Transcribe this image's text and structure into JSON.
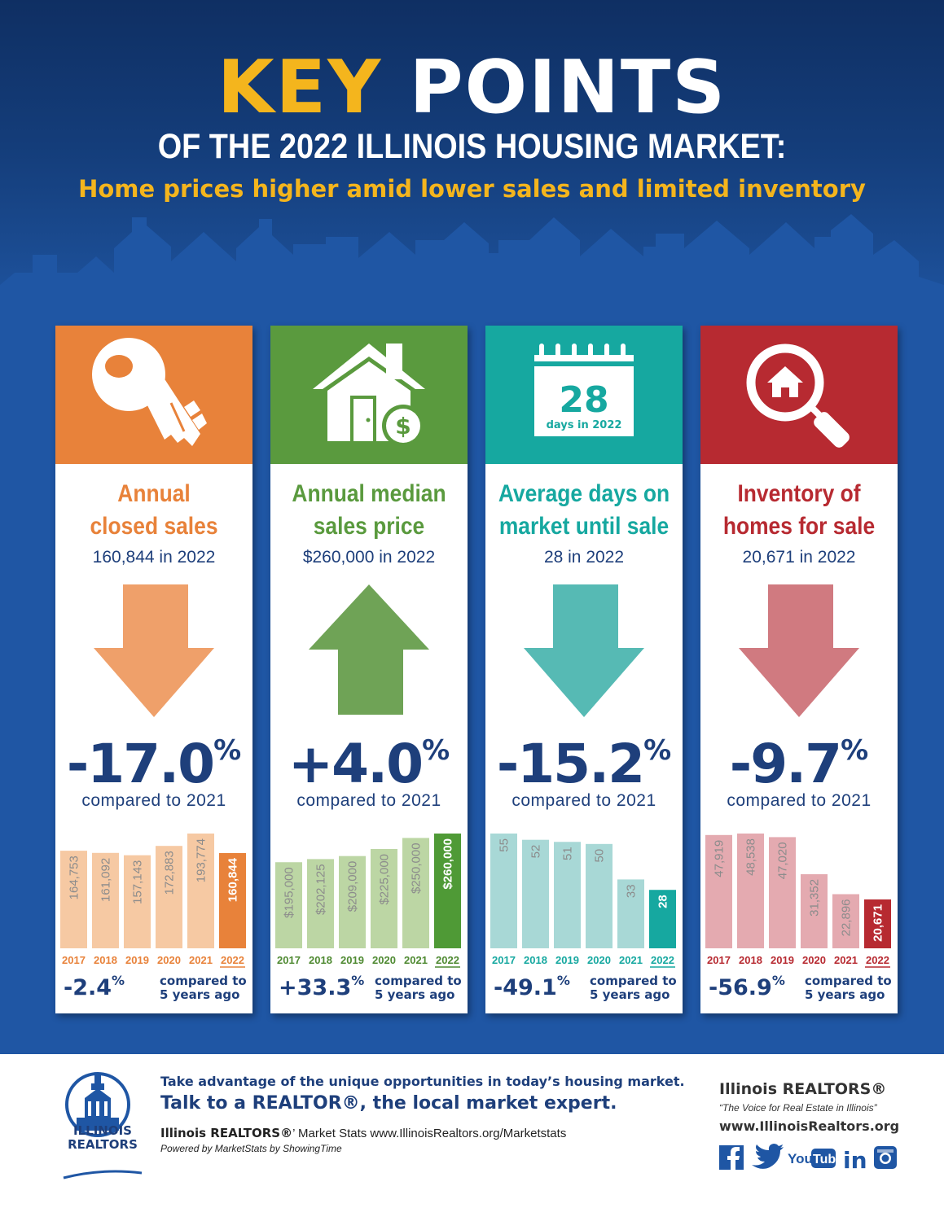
{
  "header": {
    "title_key": "KEY",
    "title_points": "POINTS",
    "subtitle": "OF THE 2022 ILLINOIS HOUSING MARKET:",
    "tagline": "Home prices higher amid lower sales and limited inventory"
  },
  "colors": {
    "orange": "#e8823a",
    "green": "#5a9a3e",
    "teal": "#16a8a0",
    "red": "#b72a31",
    "navy": "#1e3f7b",
    "yellow": "#f4b51d"
  },
  "cards": [
    {
      "icon": "key-icon",
      "title_l1": "Annual",
      "title_l2": "closed sales",
      "sub": "160,844 in 2022",
      "direction": "down",
      "change": "-17.0",
      "change_unit": "%",
      "compared": "compared to 2021",
      "five_yr": "-2.4",
      "five_yr_unit": "%",
      "five_yr_l1": "compared to",
      "five_yr_l2": "5 years ago"
    },
    {
      "icon": "house-dollar-icon",
      "title_l1": "Annual median",
      "title_l2": "sales price",
      "sub": "$260,000 in 2022",
      "direction": "up",
      "change": "+4.0",
      "change_unit": "%",
      "compared": "compared to 2021",
      "five_yr": "+33.3",
      "five_yr_unit": "%",
      "five_yr_l1": "compared to",
      "five_yr_l2": "5 years ago"
    },
    {
      "icon": "calendar-icon",
      "calendar_number": "28",
      "calendar_caption": "days in 2022",
      "title_l1": "Average days on",
      "title_l2": "market until sale",
      "sub": "28 in 2022",
      "direction": "down",
      "change": "-15.2",
      "change_unit": "%",
      "compared": "compared to 2021",
      "five_yr": "-49.1",
      "five_yr_unit": "%",
      "five_yr_l1": "compared to",
      "five_yr_l2": "5 years ago"
    },
    {
      "icon": "magnifier-house-icon",
      "title_l1": "Inventory of",
      "title_l2": "homes for sale",
      "sub": "20,671 in 2022",
      "direction": "down",
      "change": "-9.7",
      "change_unit": "%",
      "compared": "compared to 2021",
      "five_yr": "-56.9",
      "five_yr_unit": "%",
      "five_yr_l1": "compared to",
      "five_yr_l2": "5 years ago"
    }
  ],
  "chart_data": [
    {
      "type": "bar",
      "categories": [
        "2017",
        "2018",
        "2019",
        "2020",
        "2021",
        "2022"
      ],
      "values": [
        164753,
        161092,
        157143,
        172883,
        193774,
        160844
      ],
      "labels": [
        "164,753",
        "161,092",
        "157,143",
        "172,883",
        "193,774",
        "160,844"
      ],
      "ylim": [
        0,
        193774
      ],
      "title": "Annual closed sales"
    },
    {
      "type": "bar",
      "categories": [
        "2017",
        "2018",
        "2019",
        "2020",
        "2021",
        "2022"
      ],
      "values": [
        195000,
        202125,
        209000,
        225000,
        250000,
        260000
      ],
      "labels": [
        "$195,000",
        "$202,125",
        "$209,000",
        "$225,000",
        "$250,000",
        "$260,000"
      ],
      "ylim": [
        0,
        260000
      ],
      "title": "Annual median sales price"
    },
    {
      "type": "bar",
      "categories": [
        "2017",
        "2018",
        "2019",
        "2020",
        "2021",
        "2022"
      ],
      "values": [
        55,
        52,
        51,
        50,
        33,
        28
      ],
      "labels": [
        "55",
        "52",
        "51",
        "50",
        "33",
        "28"
      ],
      "ylim": [
        0,
        55
      ],
      "title": "Average days on market until sale"
    },
    {
      "type": "bar",
      "categories": [
        "2017",
        "2018",
        "2019",
        "2020",
        "2021",
        "2022"
      ],
      "values": [
        47919,
        48538,
        47020,
        31352,
        22896,
        20671
      ],
      "labels": [
        "47,919",
        "48,538",
        "47,020",
        "31,352",
        "22,896",
        "20,671"
      ],
      "ylim": [
        0,
        48538
      ],
      "title": "Inventory of homes for sale"
    }
  ],
  "footer": {
    "logo_line1": "ILLINOIS",
    "logo_line2": "REALTORS",
    "line1": "Take advantage of the unique opportunities in today’s housing market.",
    "line2": "Talk to a REALTOR®, the local market expert.",
    "stats_brand": "Illinois REALTORS®",
    "stats_rest": "’ Market Stats www.IllinoisRealtors.org/Marketstats",
    "powered": "Powered by MarketStats by ShowingTime",
    "brand": "Illinois REALTORS®",
    "tagline": "“The Voice for Real Estate in Illinois”",
    "url": "www.IllinoisRealtors.org",
    "social": [
      "facebook-icon",
      "twitter-icon",
      "youtube-icon",
      "linkedin-icon",
      "instagram-icon"
    ]
  }
}
